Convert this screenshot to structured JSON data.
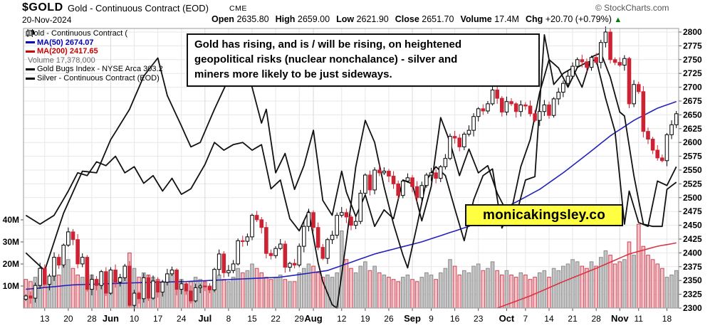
{
  "header": {
    "symbol": "$GOLD",
    "name": "Gold - Continuous Contract (EOD)",
    "exchange": "CME",
    "copyright": "© StockCharts.com",
    "date": "20-Nov-2024",
    "quote": [
      {
        "label": "Open",
        "value": "2635.80"
      },
      {
        "label": "High",
        "value": "2659.00"
      },
      {
        "label": "Low",
        "value": "2621.90"
      },
      {
        "label": "Close",
        "value": "2651.70"
      },
      {
        "label": "Volume",
        "value": "17.4M"
      },
      {
        "label": "Chg",
        "value": "+20.70 (+0.79%)"
      }
    ],
    "up_arrow": "▲"
  },
  "legend": {
    "rows": [
      {
        "text": "Gold - Continuous Contract (",
        "color": "#000000"
      },
      {
        "text": "MA(50) 2674.07",
        "color": "#0000bb"
      },
      {
        "text": "MA(200) 2417.65",
        "color": "#cc0000"
      },
      {
        "text": "Volume 17,378,000",
        "color": "#666666"
      },
      {
        "text": "Gold Bugs Index - NYSE Arca 303.2",
        "color": "#000000"
      },
      {
        "text": "Silver - Continuous Contract (EOD)",
        "color": "#000000"
      }
    ]
  },
  "annotation": {
    "lines": [
      "Gold has rising, and is / will be rising, on heightened",
      "geopolitical risks (nuclear nonchalance) - silver and",
      "miners more likely to be just sideways."
    ]
  },
  "watermark": "monicakingsley.co",
  "chart_data": {
    "type": "candlestick",
    "title": "$GOLD Gold - Continuous Contract (EOD) CME",
    "price_axis": {
      "min": 2300,
      "max": 2800,
      "step": 25,
      "side": "right"
    },
    "volume_axis": {
      "labels": [
        "40M",
        "30M",
        "20M",
        "10M"
      ],
      "values": [
        40,
        30,
        20,
        10
      ],
      "unit": "M"
    },
    "x_ticks": [
      {
        "label": "13",
        "day": 4,
        "bold": false
      },
      {
        "label": "20",
        "day": 9,
        "bold": false
      },
      {
        "label": "28",
        "day": 14,
        "bold": false
      },
      {
        "label": "Jun",
        "day": 18,
        "bold": true
      },
      {
        "label": "10",
        "day": 23,
        "bold": false
      },
      {
        "label": "17",
        "day": 28,
        "bold": false
      },
      {
        "label": "24",
        "day": 33,
        "bold": false
      },
      {
        "label": "Jul",
        "day": 38,
        "bold": true
      },
      {
        "label": "8",
        "day": 43,
        "bold": false
      },
      {
        "label": "15",
        "day": 48,
        "bold": false
      },
      {
        "label": "22",
        "day": 53,
        "bold": false
      },
      {
        "label": "29",
        "day": 58,
        "bold": false
      },
      {
        "label": "Aug",
        "day": 61,
        "bold": true
      },
      {
        "label": "12",
        "day": 67,
        "bold": false
      },
      {
        "label": "19",
        "day": 72,
        "bold": false
      },
      {
        "label": "26",
        "day": 77,
        "bold": false
      },
      {
        "label": "Sep",
        "day": 82,
        "bold": true
      },
      {
        "label": "9",
        "day": 86,
        "bold": false
      },
      {
        "label": "16",
        "day": 91,
        "bold": false
      },
      {
        "label": "23",
        "day": 96,
        "bold": false
      },
      {
        "label": "Oct",
        "day": 102,
        "bold": true
      },
      {
        "label": "7",
        "day": 106,
        "bold": false
      },
      {
        "label": "14",
        "day": 111,
        "bold": false
      },
      {
        "label": "21",
        "day": 116,
        "bold": false
      },
      {
        "label": "28",
        "day": 121,
        "bold": false
      },
      {
        "label": "Nov",
        "day": 126,
        "bold": true
      },
      {
        "label": "11",
        "day": 130,
        "bold": false
      },
      {
        "label": "18",
        "day": 136,
        "bold": false
      }
    ],
    "gold": {
      "close": [
        2322,
        2318,
        2341,
        2372,
        2343,
        2358,
        2392,
        2378,
        2414,
        2438,
        2424,
        2380,
        2392,
        2334,
        2352,
        2341,
        2366,
        2327,
        2369,
        2347,
        2355,
        2376,
        2305,
        2327,
        2317,
        2355,
        2318,
        2349,
        2329,
        2347,
        2362,
        2369,
        2334,
        2344,
        2331,
        2313,
        2337,
        2340,
        2339,
        2333,
        2370,
        2398,
        2364,
        2368,
        2380,
        2422,
        2421,
        2429,
        2468,
        2460,
        2446,
        2399,
        2395,
        2408,
        2416,
        2374,
        2381,
        2378,
        2412,
        2448,
        2473,
        2446,
        2410,
        2390,
        2424,
        2432,
        2468,
        2473,
        2465,
        2450,
        2457,
        2508,
        2541,
        2514,
        2550,
        2545,
        2548,
        2539,
        2525,
        2504,
        2530,
        2536,
        2520,
        2500,
        2522,
        2541,
        2545,
        2535,
        2556,
        2571,
        2611,
        2608,
        2592,
        2615,
        2622,
        2647,
        2661,
        2657,
        2670,
        2695,
        2680,
        2655,
        2674,
        2670,
        2656,
        2668,
        2666,
        2652,
        2640,
        2656,
        2668,
        2649,
        2679,
        2691,
        2707,
        2720,
        2738,
        2750,
        2746,
        2736,
        2754,
        2745,
        2781,
        2800,
        2750,
        2745,
        2740,
        2752,
        2670,
        2705,
        2692,
        2620,
        2606,
        2586,
        2572,
        2567,
        2614,
        2632,
        2652
      ]
    },
    "volume_m": [
      13,
      12,
      14,
      15,
      14,
      12,
      17,
      15,
      19,
      22,
      18,
      15,
      14,
      16,
      15,
      12,
      13,
      12,
      16,
      13,
      14,
      15,
      25,
      18,
      14,
      16,
      15,
      14,
      13,
      12,
      14,
      16,
      12,
      13,
      11,
      12,
      14,
      13,
      12,
      10,
      14,
      15,
      13,
      12,
      14,
      18,
      16,
      17,
      20,
      18,
      16,
      14,
      13,
      14,
      15,
      13,
      12,
      12,
      16,
      18,
      20,
      19,
      16,
      14,
      15,
      14,
      16,
      35,
      22,
      18,
      16,
      19,
      21,
      17,
      19,
      16,
      15,
      14,
      13,
      12,
      14,
      15,
      13,
      12,
      14,
      16,
      15,
      13,
      16,
      18,
      22,
      19,
      15,
      17,
      16,
      19,
      20,
      17,
      18,
      21,
      17,
      15,
      17,
      15,
      14,
      16,
      15,
      13,
      14,
      16,
      17,
      14,
      18,
      17,
      19,
      20,
      22,
      21,
      19,
      18,
      21,
      19,
      23,
      26,
      24,
      20,
      21,
      22,
      30,
      24,
      38,
      28,
      24,
      22,
      20,
      18,
      14,
      15,
      17
    ],
    "ma50_anchors": [
      [
        0,
        2334
      ],
      [
        10,
        2342
      ],
      [
        24,
        2346
      ],
      [
        34,
        2348
      ],
      [
        44,
        2352
      ],
      [
        54,
        2356
      ],
      [
        64,
        2368
      ],
      [
        74,
        2398
      ],
      [
        84,
        2420
      ],
      [
        94,
        2448
      ],
      [
        104,
        2492
      ],
      [
        109,
        2515
      ],
      [
        114,
        2545
      ],
      [
        119,
        2578
      ],
      [
        124,
        2612
      ],
      [
        129,
        2640
      ],
      [
        134,
        2662
      ],
      [
        138,
        2674
      ]
    ],
    "ma200_anchors": [
      [
        100,
        2300
      ],
      [
        107,
        2322
      ],
      [
        114,
        2348
      ],
      [
        121,
        2372
      ],
      [
        128,
        2398
      ],
      [
        134,
        2412
      ],
      [
        138,
        2418
      ]
    ],
    "silver_anchors": [
      [
        0,
        2400
      ],
      [
        4,
        2368
      ],
      [
        8,
        2472
      ],
      [
        12,
        2548
      ],
      [
        15,
        2545
      ],
      [
        18,
        2605
      ],
      [
        22,
        2660
      ],
      [
        25,
        2720
      ],
      [
        28,
        2753
      ],
      [
        30,
        2685
      ],
      [
        33,
        2630
      ],
      [
        35,
        2592
      ],
      [
        37,
        2600
      ],
      [
        40,
        2660
      ],
      [
        43,
        2715
      ],
      [
        46,
        2748
      ],
      [
        48,
        2700
      ],
      [
        50,
        2635
      ],
      [
        51,
        2660
      ],
      [
        53,
        2545
      ],
      [
        55,
        2580
      ],
      [
        57,
        2515
      ],
      [
        59,
        2558
      ],
      [
        61,
        2622
      ],
      [
        63,
        2495
      ],
      [
        65,
        2468
      ],
      [
        67,
        2548
      ],
      [
        68,
        2510
      ],
      [
        70,
        2466
      ],
      [
        72,
        2505
      ],
      [
        74,
        2448
      ],
      [
        76,
        2478
      ],
      [
        78,
        2462
      ],
      [
        80,
        2532
      ],
      [
        82,
        2525
      ],
      [
        84,
        2458
      ],
      [
        86,
        2520
      ],
      [
        88,
        2645
      ],
      [
        90,
        2600
      ],
      [
        92,
        2540
      ],
      [
        94,
        2588
      ],
      [
        96,
        2545
      ],
      [
        98,
        2558
      ],
      [
        100,
        2508
      ],
      [
        102,
        2475
      ],
      [
        104,
        2468
      ],
      [
        106,
        2532
      ],
      [
        108,
        2538
      ],
      [
        110,
        2795
      ],
      [
        112,
        2705
      ],
      [
        114,
        2725
      ],
      [
        116,
        2735
      ],
      [
        118,
        2700
      ],
      [
        120,
        2755
      ],
      [
        122,
        2762
      ],
      [
        124,
        2718
      ],
      [
        126,
        2655
      ],
      [
        127,
        2648
      ],
      [
        129,
        2540
      ],
      [
        131,
        2452
      ],
      [
        133,
        2448
      ],
      [
        135,
        2448
      ],
      [
        136,
        2515
      ],
      [
        138,
        2528
      ]
    ],
    "goldbugs_anchors": [
      [
        0,
        2468
      ],
      [
        3,
        2452
      ],
      [
        6,
        2468
      ],
      [
        9,
        2512
      ],
      [
        11,
        2545
      ],
      [
        13,
        2540
      ],
      [
        15,
        2565
      ],
      [
        17,
        2558
      ],
      [
        19,
        2575
      ],
      [
        21,
        2545
      ],
      [
        23,
        2556
      ],
      [
        25,
        2526
      ],
      [
        27,
        2540
      ],
      [
        29,
        2512
      ],
      [
        31,
        2535
      ],
      [
        33,
        2506
      ],
      [
        35,
        2516
      ],
      [
        38,
        2560
      ],
      [
        40,
        2600
      ],
      [
        42,
        2586
      ],
      [
        44,
        2596
      ],
      [
        46,
        2600
      ],
      [
        48,
        2586
      ],
      [
        50,
        2596
      ],
      [
        52,
        2516
      ],
      [
        54,
        2532
      ],
      [
        56,
        2462
      ],
      [
        58,
        2440
      ],
      [
        60,
        2476
      ],
      [
        62,
        2382
      ],
      [
        63,
        2348
      ],
      [
        65,
        2306
      ],
      [
        66,
        2300
      ],
      [
        68,
        2422
      ],
      [
        70,
        2556
      ],
      [
        72,
        2640
      ],
      [
        74,
        2600
      ],
      [
        76,
        2520
      ],
      [
        78,
        2452
      ],
      [
        80,
        2396
      ],
      [
        81,
        2373
      ],
      [
        83,
        2450
      ],
      [
        85,
        2532
      ],
      [
        87,
        2556
      ],
      [
        89,
        2540
      ],
      [
        91,
        2480
      ],
      [
        93,
        2422
      ],
      [
        95,
        2496
      ],
      [
        97,
        2540
      ],
      [
        99,
        2552
      ],
      [
        101,
        2445
      ],
      [
        103,
        2476
      ],
      [
        105,
        2556
      ],
      [
        107,
        2605
      ],
      [
        109,
        2690
      ],
      [
        111,
        2750
      ],
      [
        113,
        2735
      ],
      [
        115,
        2700
      ],
      [
        117,
        2736
      ],
      [
        119,
        2745
      ],
      [
        121,
        2750
      ],
      [
        123,
        2680
      ],
      [
        125,
        2620
      ],
      [
        127,
        2452
      ],
      [
        128,
        2512
      ],
      [
        130,
        2455
      ],
      [
        132,
        2448
      ],
      [
        134,
        2530
      ],
      [
        136,
        2522
      ],
      [
        138,
        2556
      ]
    ],
    "colors": {
      "candle_up_fill": "#ffffff",
      "candle_up_stroke": "#000000",
      "candle_down": "#cc2233",
      "ma50": "#2222bb",
      "ma200": "#d93344",
      "overlay_line": "#111111",
      "vol_up_fill": "#c4c4c4",
      "vol_up_stroke": "#8a8a8a",
      "vol_down_fill": "#f3c3c8",
      "vol_down_stroke": "#cc4455",
      "grid": "#e7e7e7",
      "grid_month": "#d9d9d9",
      "frame": "#999999"
    },
    "legend_position": "top-left",
    "grid": true
  }
}
